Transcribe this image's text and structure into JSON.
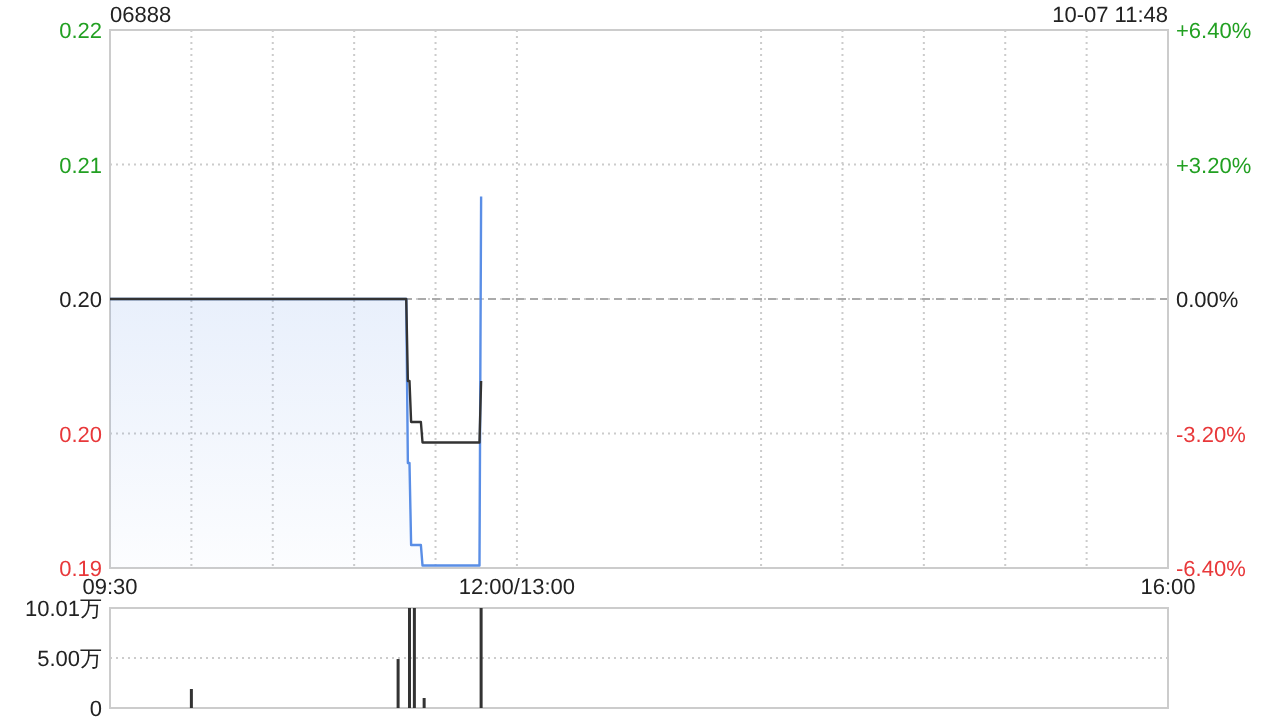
{
  "chart_data": [
    {
      "type": "line",
      "title": "06888",
      "annotations": [
        "10-07 11:48"
      ],
      "x": [
        9.5,
        11.32,
        11.33,
        11.34,
        11.35,
        11.41,
        11.42,
        11.77,
        11.78
      ],
      "series": [
        {
          "type": "area",
          "color": "#5a8ee6",
          "values": [
            0.205,
            0.205,
            0.197,
            0.197,
            0.193,
            0.193,
            0.192,
            0.192,
            0.21
          ]
        },
        {
          "type": "line",
          "color": "#333333",
          "values": [
            0.205,
            0.205,
            0.201,
            0.201,
            0.199,
            0.199,
            0.198,
            0.198,
            0.201
          ]
        }
      ],
      "xlim": [
        9.5,
        16
      ],
      "xticks": [
        {
          "value": 9.5,
          "label": "09:30"
        },
        {
          "value": 10,
          "label": null
        },
        {
          "value": 10.5,
          "label": null
        },
        {
          "value": 11,
          "label": null
        },
        {
          "value": 11.5,
          "label": null
        },
        {
          "value": 12,
          "label": "12:00/13:00"
        },
        {
          "value": 13.5,
          "label": null
        },
        {
          "value": 14,
          "label": null
        },
        {
          "value": 14.5,
          "label": null
        },
        {
          "value": 15,
          "label": null
        },
        {
          "value": 15.5,
          "label": null
        },
        {
          "value": 16,
          "label": "16:00"
        }
      ],
      "ylim": [
        0.19188,
        0.21812
      ],
      "yticks": [
        {
          "value": 0.21812,
          "label": "0.22"
        },
        {
          "value": 0.21156,
          "label": "0.21"
        },
        {
          "value": 0.205,
          "label": "0.20"
        },
        {
          "value": 0.19844,
          "label": "0.20"
        },
        {
          "value": 0.19188,
          "label": "0.19"
        }
      ],
      "y2lim": [
        -6.4,
        6.4
      ],
      "y2ticks": [
        {
          "value": 6.4,
          "label": "+6.40%"
        },
        {
          "value": 3.2,
          "label": "+3.20%"
        },
        {
          "value": 0,
          "label": "0.00%"
        },
        {
          "value": -3.2,
          "label": "-3.20%"
        },
        {
          "value": -6.4,
          "label": "-6.40%"
        }
      ],
      "ref_lines": [
        {
          "axis": "y2",
          "value": 0,
          "line_style": "dashed",
          "color": "#aaaaaa"
        }
      ],
      "grid": true
    },
    {
      "type": "bar",
      "x": [
        10,
        11.27,
        11.34,
        11.37,
        11.43,
        11.78
      ],
      "values": [
        1.9,
        4.9,
        10.01,
        10.01,
        1.0,
        10.01
      ],
      "color": "#333333",
      "xlim": [
        9.5,
        16
      ],
      "ylim": [
        0,
        10.01
      ],
      "yticks": [
        0,
        {
          "value": 5,
          "label": "5.00万"
        },
        {
          "value": 10.01,
          "label": "10.01万"
        }
      ],
      "grid": "y",
      "tick_labels": "y"
    }
  ]
}
